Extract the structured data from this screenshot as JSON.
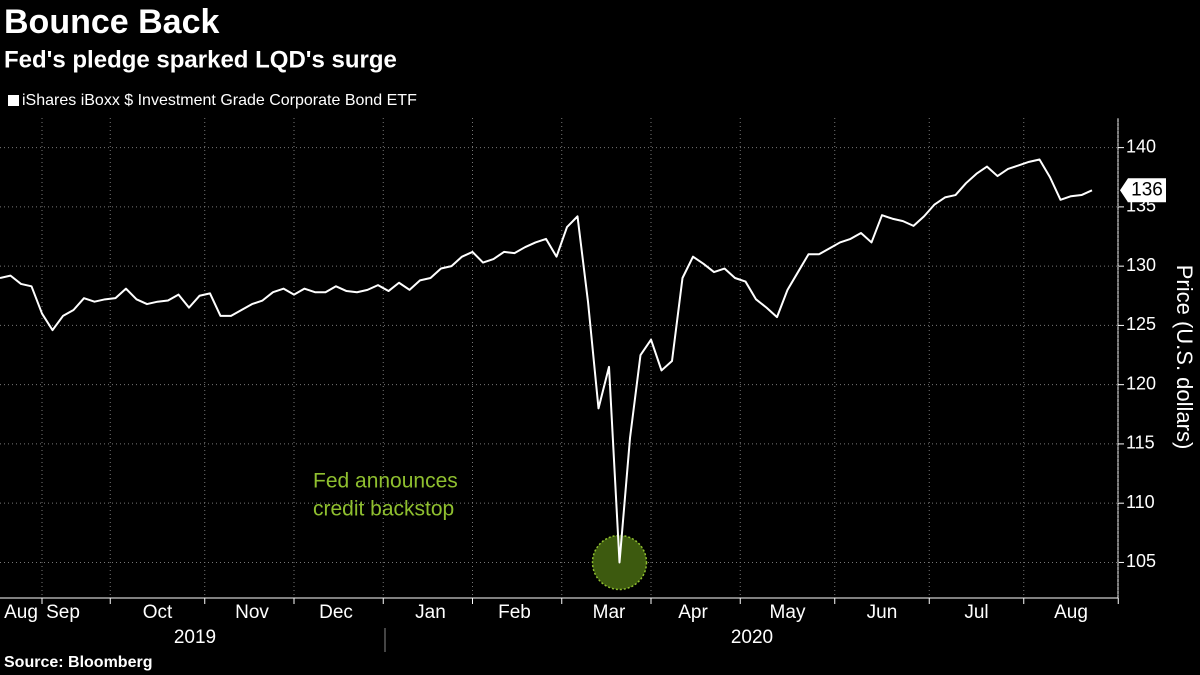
{
  "chart_data": {
    "type": "line",
    "title": "Bounce Back",
    "subtitle": "Fed's pledge sparked LQD's surge",
    "y_axis_label": "Price (U.S. dollars)",
    "source": "Source: Bloomberg",
    "annotation": [
      "Fed announces",
      "credit backstop"
    ],
    "years": [
      "2019",
      "2020"
    ],
    "last_value_label": "136",
    "categories": [
      null,
      null,
      "Aug",
      null,
      null,
      null,
      "Sep",
      null,
      null,
      null,
      null,
      null,
      null,
      null,
      null,
      "Oct",
      null,
      null,
      null,
      null,
      null,
      null,
      null,
      null,
      "Nov",
      null,
      null,
      null,
      null,
      null,
      null,
      null,
      "Dec",
      null,
      null,
      null,
      null,
      null,
      null,
      null,
      null,
      "Jan",
      null,
      null,
      null,
      null,
      null,
      null,
      null,
      "Feb",
      null,
      null,
      null,
      null,
      null,
      null,
      null,
      null,
      "Mar",
      null,
      null,
      null,
      null,
      null,
      null,
      null,
      "Apr",
      null,
      null,
      null,
      null,
      null,
      null,
      null,
      null,
      "May",
      null,
      null,
      null,
      null,
      null,
      null,
      null,
      null,
      "Jun",
      null,
      null,
      null,
      null,
      null,
      null,
      null,
      null,
      "Jul",
      null,
      null,
      null,
      null,
      null,
      null,
      null,
      null,
      "Aug",
      null,
      null
    ],
    "series": [
      {
        "name": "iShares iBoxx $ Investment Grade Corporate Bond ETF",
        "color": "#ffffff",
        "values": [
          129,
          129.2,
          128.5,
          128.3,
          126,
          124.6,
          125.8,
          126.3,
          127.3,
          127,
          127.2,
          127.3,
          128.1,
          127.2,
          126.8,
          127,
          127.1,
          127.6,
          126.5,
          127.5,
          127.7,
          125.8,
          125.8,
          126.3,
          126.8,
          127.1,
          127.8,
          128.1,
          127.6,
          128.1,
          127.8,
          127.8,
          128.3,
          127.9,
          127.8,
          128,
          128.4,
          127.9,
          128.6,
          128,
          128.8,
          129,
          129.8,
          130,
          130.8,
          131.2,
          130.3,
          130.6,
          131.2,
          131.1,
          131.6,
          132,
          132.3,
          130.8,
          133.3,
          134.2,
          127,
          118,
          121.5,
          105,
          115.5,
          122.5,
          123.8,
          121.2,
          122,
          129,
          130.8,
          130.2,
          129.5,
          129.8,
          129,
          128.7,
          127.2,
          126.5,
          125.7,
          128,
          129.5,
          131,
          131,
          131.5,
          132,
          132.3,
          132.8,
          132,
          134.3,
          134,
          133.8,
          133.4,
          134.2,
          135.2,
          135.8,
          136,
          137,
          137.8,
          138.4,
          137.6,
          138.2,
          138.5,
          138.8,
          139,
          137.5,
          135.6,
          135.9,
          136,
          136.4
        ]
      }
    ],
    "ylim": [
      102,
      142.5
    ],
    "yticks": [
      105,
      110,
      115,
      120,
      125,
      130,
      135,
      140
    ],
    "grid": true,
    "annotation_color": "#8fbf2f"
  }
}
